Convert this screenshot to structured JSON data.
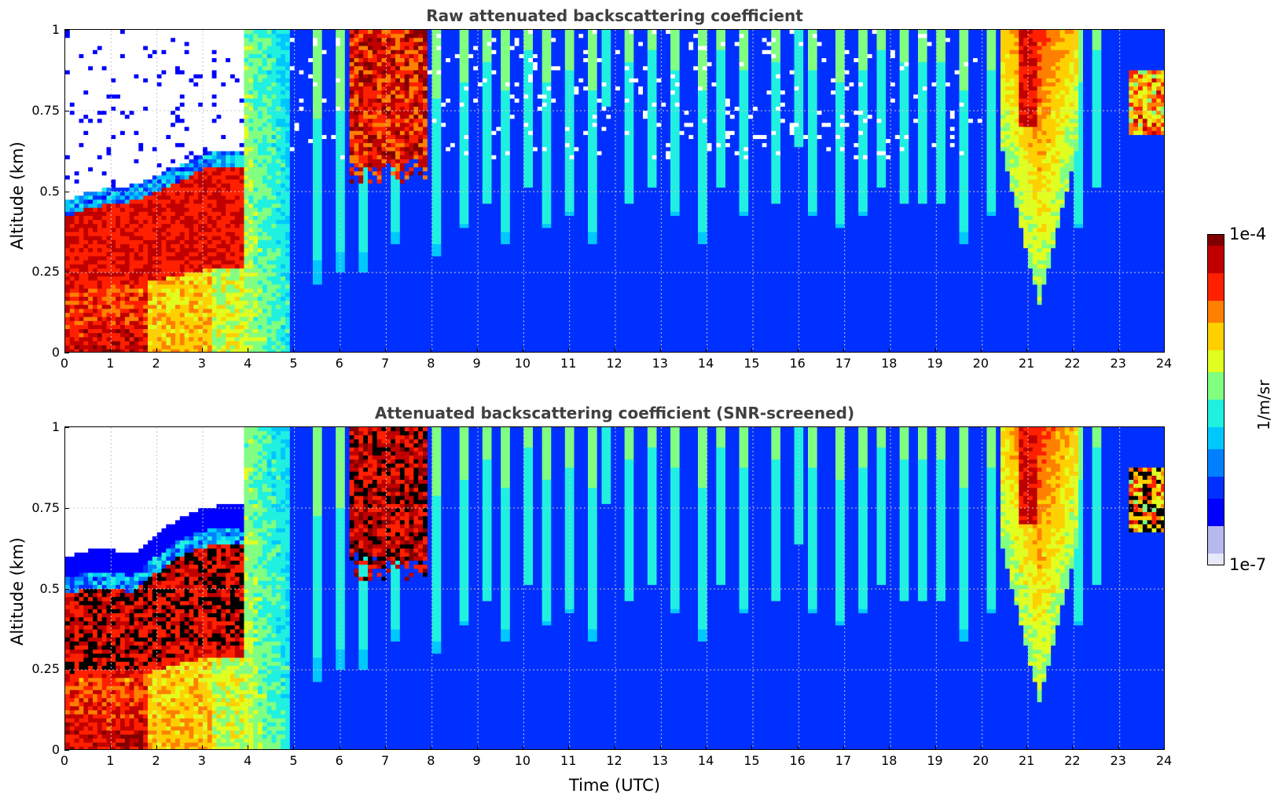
{
  "colors": {
    "colormap": [
      "#e8e8f8",
      "#b8b8f0",
      "#0000ff",
      "#0030ff",
      "#0080ff",
      "#00c8ff",
      "#20f0e0",
      "#80ff80",
      "#e0ff20",
      "#ffd000",
      "#ff8000",
      "#ff2000",
      "#c00000",
      "#800000"
    ],
    "saturated_black": "#000000"
  },
  "colorbar": {
    "max_label": "1e-4",
    "min_label": "1e-7",
    "units": "1/m/sr"
  },
  "chart_data": [
    {
      "type": "heatmap",
      "title": "Raw attenuated backscattering coefficient",
      "xlabel": "",
      "ylabel": "Altitude (km)",
      "xlim": [
        0,
        24
      ],
      "ylim": [
        0,
        1
      ],
      "x_ticks": [
        "0",
        "1",
        "2",
        "3",
        "4",
        "5",
        "6",
        "7",
        "8",
        "9",
        "10",
        "11",
        "12",
        "13",
        "14",
        "15",
        "16",
        "17",
        "18",
        "19",
        "20",
        "21",
        "22",
        "23",
        "24"
      ],
      "y_ticks": [
        "0",
        "0.25",
        "0.5",
        "0.75",
        "1"
      ],
      "grid": true,
      "colorscale": "log10 1e-7 to 1e-4",
      "features": {
        "boundary_layer": [
          [
            0.0,
            0.42
          ],
          [
            0.5,
            0.45
          ],
          [
            1.0,
            0.46
          ],
          [
            1.5,
            0.47
          ],
          [
            2.0,
            0.5
          ],
          [
            2.5,
            0.53
          ],
          [
            3.0,
            0.57
          ],
          [
            3.5,
            0.57
          ],
          [
            3.85,
            0.57
          ]
        ],
        "clear_top_until_hour": 4.0,
        "high_cloud": [
          [
            6.2,
            7.9,
            0.56
          ]
        ],
        "fall_streaks": [
          [
            4.4,
            0.3
          ],
          [
            5.5,
            0.25
          ],
          [
            6.0,
            0.3
          ],
          [
            6.5,
            0.3
          ],
          [
            7.2,
            0.4
          ],
          [
            8.1,
            0.35
          ],
          [
            8.7,
            0.45
          ],
          [
            9.2,
            0.55
          ],
          [
            9.6,
            0.4
          ],
          [
            10.1,
            0.6
          ],
          [
            10.5,
            0.45
          ],
          [
            11.0,
            0.5
          ],
          [
            11.5,
            0.4
          ],
          [
            11.8,
            0.9
          ],
          [
            12.3,
            0.55
          ],
          [
            12.8,
            0.6
          ],
          [
            13.3,
            0.5
          ],
          [
            13.9,
            0.4
          ],
          [
            14.3,
            0.6
          ],
          [
            14.8,
            0.5
          ],
          [
            15.5,
            0.55
          ],
          [
            16.0,
            0.75
          ],
          [
            16.3,
            0.5
          ],
          [
            16.9,
            0.45
          ],
          [
            17.4,
            0.5
          ],
          [
            17.8,
            0.6
          ],
          [
            18.3,
            0.55
          ],
          [
            18.7,
            0.55
          ],
          [
            19.1,
            0.55
          ],
          [
            19.6,
            0.4
          ],
          [
            20.2,
            0.5
          ],
          [
            21.4,
            0.55
          ],
          [
            22.1,
            0.45
          ],
          [
            22.5,
            0.6
          ]
        ],
        "convective_plume": [
          20.4,
          22.1
        ],
        "late_layer": [
          23.2,
          24.0,
          0.68,
          0.88
        ]
      }
    },
    {
      "type": "heatmap",
      "title": "Attenuated backscattering coefficient (SNR-screened)",
      "xlabel": "Time (UTC)",
      "ylabel": "Altitude (km)",
      "xlim": [
        0,
        24
      ],
      "ylim": [
        0,
        1
      ],
      "x_ticks": [
        "0",
        "1",
        "2",
        "3",
        "4",
        "5",
        "6",
        "7",
        "8",
        "9",
        "10",
        "11",
        "12",
        "13",
        "14",
        "15",
        "16",
        "17",
        "18",
        "19",
        "20",
        "21",
        "22",
        "23",
        "24"
      ],
      "y_ticks": [
        "0",
        "0.25",
        "0.5",
        "0.75",
        "1"
      ],
      "grid": true,
      "colorscale": "log10 1e-7 to 1e-4",
      "features": {
        "boundary_layer": [
          [
            0.0,
            0.48
          ],
          [
            0.5,
            0.5
          ],
          [
            1.0,
            0.5
          ],
          [
            1.5,
            0.49
          ],
          [
            2.0,
            0.55
          ],
          [
            2.5,
            0.6
          ],
          [
            3.0,
            0.63
          ],
          [
            3.5,
            0.64
          ],
          [
            3.85,
            0.64
          ]
        ],
        "clear_top_until_hour": 4.0,
        "high_cloud": [
          [
            6.2,
            7.9,
            0.56
          ]
        ],
        "fall_streaks": [
          [
            4.4,
            0.3
          ],
          [
            5.5,
            0.25
          ],
          [
            6.0,
            0.3
          ],
          [
            6.5,
            0.3
          ],
          [
            7.2,
            0.4
          ],
          [
            8.1,
            0.35
          ],
          [
            8.7,
            0.45
          ],
          [
            9.2,
            0.55
          ],
          [
            9.6,
            0.4
          ],
          [
            10.1,
            0.6
          ],
          [
            10.5,
            0.45
          ],
          [
            11.0,
            0.5
          ],
          [
            11.5,
            0.4
          ],
          [
            11.8,
            0.9
          ],
          [
            12.3,
            0.55
          ],
          [
            12.8,
            0.6
          ],
          [
            13.3,
            0.5
          ],
          [
            13.9,
            0.4
          ],
          [
            14.3,
            0.6
          ],
          [
            14.8,
            0.5
          ],
          [
            15.5,
            0.55
          ],
          [
            16.0,
            0.75
          ],
          [
            16.3,
            0.5
          ],
          [
            16.9,
            0.45
          ],
          [
            17.4,
            0.5
          ],
          [
            17.8,
            0.6
          ],
          [
            18.3,
            0.55
          ],
          [
            18.7,
            0.55
          ],
          [
            19.1,
            0.55
          ],
          [
            19.6,
            0.4
          ],
          [
            20.2,
            0.5
          ],
          [
            21.4,
            0.55
          ],
          [
            22.1,
            0.45
          ],
          [
            22.5,
            0.6
          ]
        ],
        "convective_plume": [
          20.4,
          22.1
        ],
        "late_layer": [
          23.2,
          24.0,
          0.68,
          0.88
        ]
      }
    }
  ]
}
